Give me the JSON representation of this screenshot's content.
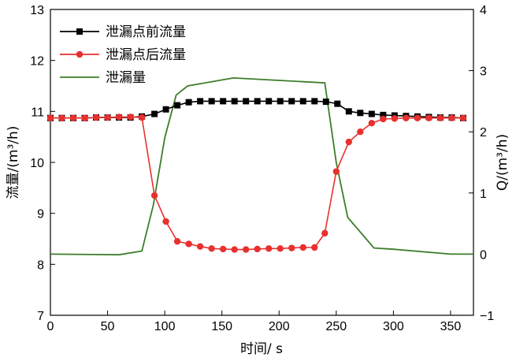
{
  "chart_data": {
    "type": "line",
    "xlabel": "时间/ s",
    "ylabel_left": "流量/(m³/h)",
    "ylabel_right": "Q/(m³/h)",
    "x_ticks": [
      0,
      50,
      100,
      150,
      200,
      250,
      300,
      350
    ],
    "y_left_ticks": [
      7,
      8,
      9,
      10,
      11,
      12,
      13
    ],
    "y_right_ticks": [
      -1,
      0,
      1,
      2,
      3,
      4
    ],
    "xlim": [
      0,
      370
    ],
    "ylim_left": [
      7,
      13
    ],
    "ylim_right": [
      -1,
      4
    ],
    "legend_position": "top-left",
    "series": [
      {
        "name": "泄漏点前流量",
        "axis": "left",
        "color": "#000000",
        "marker": "square",
        "points": [
          [
            0,
            10.87
          ],
          [
            10,
            10.87
          ],
          [
            20,
            10.87
          ],
          [
            30,
            10.87
          ],
          [
            40,
            10.88
          ],
          [
            50,
            10.88
          ],
          [
            60,
            10.88
          ],
          [
            70,
            10.88
          ],
          [
            80,
            10.9
          ],
          [
            91,
            10.95
          ],
          [
            101,
            11.04
          ],
          [
            111,
            11.12
          ],
          [
            121,
            11.18
          ],
          [
            131,
            11.2
          ],
          [
            141,
            11.2
          ],
          [
            151,
            11.2
          ],
          [
            161,
            11.2
          ],
          [
            171,
            11.2
          ],
          [
            181,
            11.2
          ],
          [
            191,
            11.2
          ],
          [
            201,
            11.2
          ],
          [
            211,
            11.2
          ],
          [
            221,
            11.2
          ],
          [
            231,
            11.2
          ],
          [
            241,
            11.19
          ],
          [
            251,
            11.15
          ],
          [
            261,
            11.0
          ],
          [
            271,
            10.97
          ],
          [
            281,
            10.95
          ],
          [
            291,
            10.93
          ],
          [
            301,
            10.92
          ],
          [
            311,
            10.91
          ],
          [
            321,
            10.9
          ],
          [
            331,
            10.89
          ],
          [
            341,
            10.88
          ],
          [
            351,
            10.88
          ],
          [
            361,
            10.87
          ]
        ]
      },
      {
        "name": "泄漏点后流量",
        "axis": "left",
        "color": "#e8312f",
        "marker": "circle",
        "points": [
          [
            0,
            10.87
          ],
          [
            10,
            10.87
          ],
          [
            20,
            10.87
          ],
          [
            30,
            10.87
          ],
          [
            40,
            10.88
          ],
          [
            50,
            10.88
          ],
          [
            60,
            10.89
          ],
          [
            70,
            10.89
          ],
          [
            80,
            10.88
          ],
          [
            91,
            9.35
          ],
          [
            101,
            8.84
          ],
          [
            111,
            8.45
          ],
          [
            121,
            8.4
          ],
          [
            131,
            8.35
          ],
          [
            141,
            8.31
          ],
          [
            151,
            8.3
          ],
          [
            161,
            8.29
          ],
          [
            171,
            8.29
          ],
          [
            181,
            8.3
          ],
          [
            191,
            8.31
          ],
          [
            201,
            8.31
          ],
          [
            211,
            8.32
          ],
          [
            221,
            8.33
          ],
          [
            231,
            8.33
          ],
          [
            240,
            8.61
          ],
          [
            250,
            9.82
          ],
          [
            261,
            10.4
          ],
          [
            271,
            10.6
          ],
          [
            281,
            10.77
          ],
          [
            291,
            10.85
          ],
          [
            301,
            10.86
          ],
          [
            311,
            10.87
          ],
          [
            321,
            10.87
          ],
          [
            331,
            10.87
          ],
          [
            341,
            10.87
          ],
          [
            351,
            10.87
          ],
          [
            361,
            10.87
          ]
        ]
      },
      {
        "name": "泄漏量",
        "axis": "right",
        "color": "#3c7d2a",
        "marker": "none",
        "points": [
          [
            0,
            0.0
          ],
          [
            60,
            -0.01
          ],
          [
            80,
            0.05
          ],
          [
            90,
            0.8
          ],
          [
            100,
            1.9
          ],
          [
            110,
            2.6
          ],
          [
            120,
            2.75
          ],
          [
            160,
            2.88
          ],
          [
            240,
            2.8
          ],
          [
            250,
            1.5
          ],
          [
            260,
            0.6
          ],
          [
            283,
            0.1
          ],
          [
            300,
            0.08
          ],
          [
            350,
            0.0
          ],
          [
            370,
            0.0
          ]
        ]
      }
    ]
  }
}
